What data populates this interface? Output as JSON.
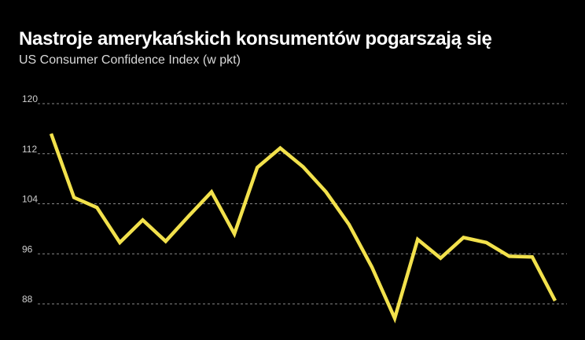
{
  "title": "Nastroje amerykańskich konsumentów pogarszają się",
  "subtitle": "US Consumer Confidence Index (w pkt)",
  "colors": {
    "background": "#000000",
    "line": "#f2e14c",
    "grid": "#8a8a8a",
    "text": "#ffffff"
  },
  "chart_data": {
    "type": "line",
    "title": "Nastroje amerykańskich konsumentów pogarszają się",
    "subtitle": "US Consumer Confidence Index (w pkt)",
    "xlabel": "",
    "ylabel": "",
    "ylim": [
      85.5,
      120
    ],
    "yticks": [
      88,
      96,
      104,
      112,
      120
    ],
    "grid": true,
    "series": [
      {
        "name": "US Consumer Confidence Index",
        "values": [
          115.2,
          105.0,
          103.4,
          97.8,
          101.4,
          98.0,
          102.0,
          105.9,
          99.2,
          109.8,
          112.9,
          109.9,
          105.9,
          100.7,
          93.9,
          85.7,
          98.3,
          95.3,
          98.6,
          97.8,
          95.6,
          95.5,
          88.5
        ]
      }
    ]
  }
}
